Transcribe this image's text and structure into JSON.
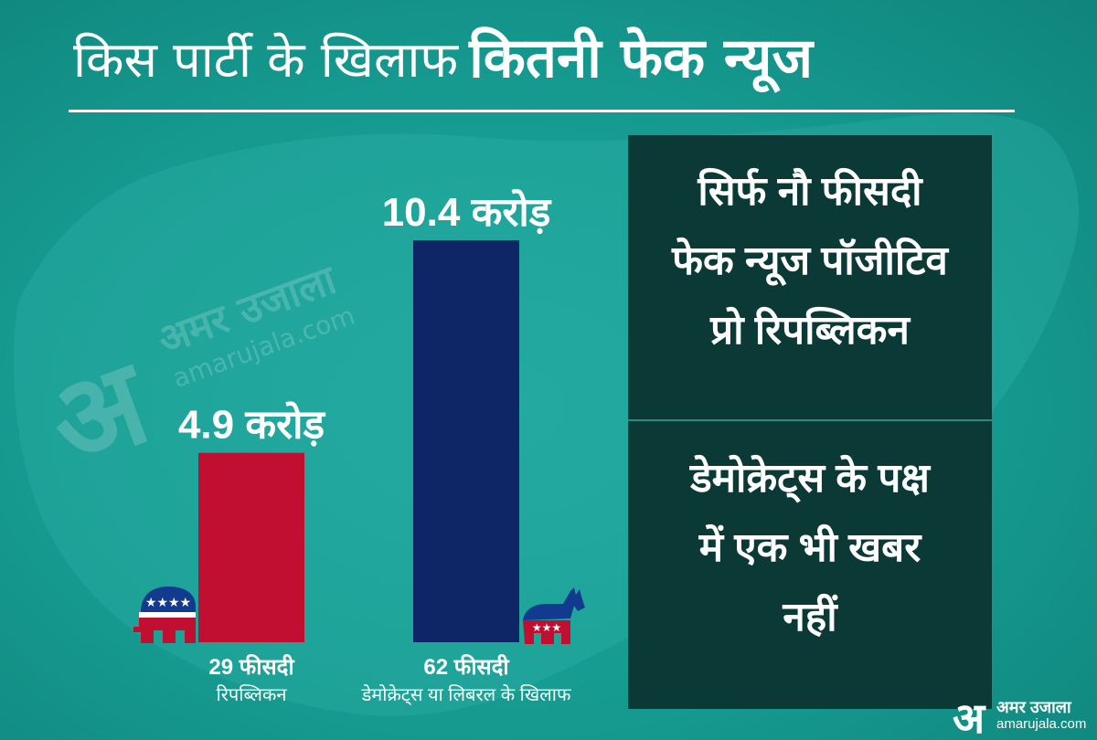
{
  "title": {
    "light": "किस पार्टी के खिलाफ",
    "bold": "कितनी फेक न्यूज"
  },
  "watermark": {
    "glyph": "अ",
    "name": "अमर उजाला",
    "url": "amarujala.com"
  },
  "chart_data": {
    "type": "bar",
    "categories": [
      "रिपब्लिकन",
      "डेमोक्रेट्स या लिबरल के खिलाफ"
    ],
    "values": [
      4.9,
      10.4
    ],
    "value_labels": [
      "4.9 करोड़",
      "10.4 करोड़"
    ],
    "percent_labels": [
      "29 फीसदी",
      "62 फीसदी"
    ],
    "unit": "करोड़",
    "colors": [
      "#c10f31",
      "#0e2566"
    ],
    "icons": [
      "republican-elephant-icon",
      "democrat-donkey-icon"
    ],
    "ylim": [
      0,
      10.4
    ],
    "grid": false,
    "title": "किस पार्टी के खिलाफ कितनी फेक न्यूज"
  },
  "panel": {
    "top_lines": [
      "सिर्फ नौ फीसदी",
      "फेक न्यूज पॉजीटिव",
      "प्रो रिपब्लिकन"
    ],
    "bottom_lines": [
      "डेमोक्रेट्स के पक्ष",
      "में एक भी खबर",
      "नहीं"
    ]
  },
  "logo": {
    "glyph": "अ",
    "name": "अमर उजाला",
    "url": "amarujala.com"
  },
  "colors": {
    "background": "#169a90",
    "panel": "#0b3a36",
    "republican": "#c10f31",
    "democrat": "#0e2566"
  }
}
